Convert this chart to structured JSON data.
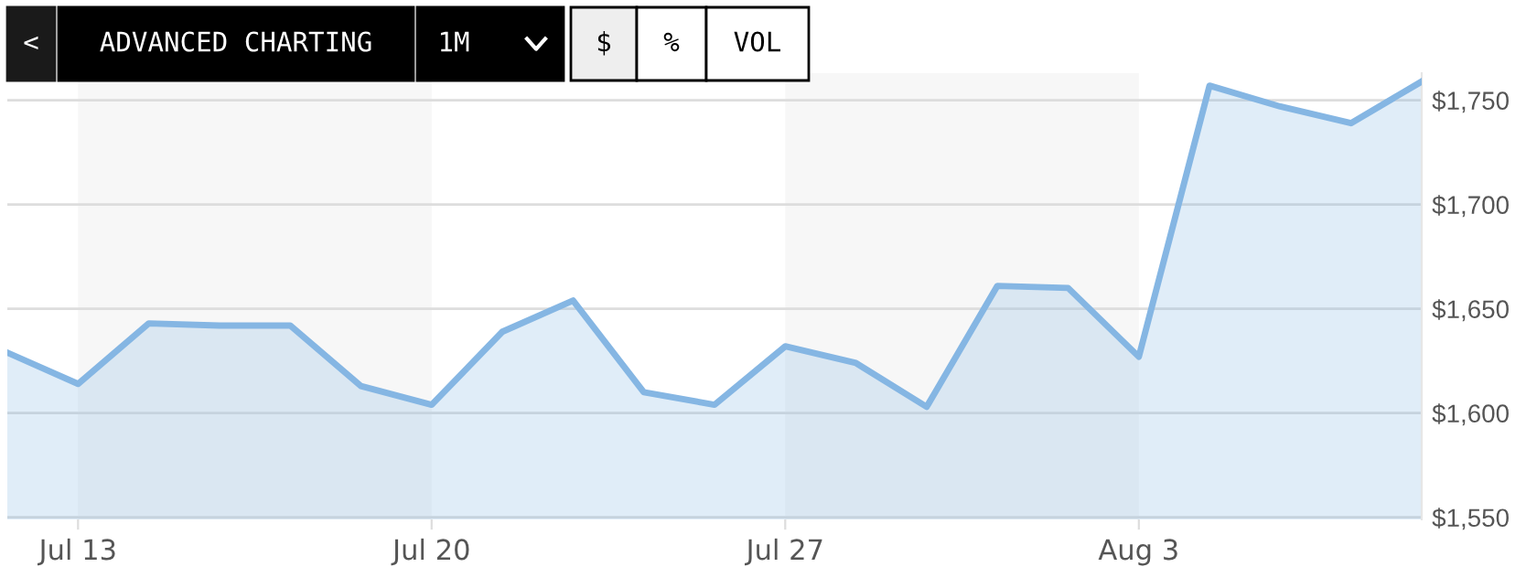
{
  "chart_data": {
    "type": "area",
    "categories": [
      null,
      "Jul 13",
      null,
      null,
      null,
      null,
      "Jul 20",
      null,
      null,
      null,
      null,
      "Jul 27",
      null,
      null,
      null,
      null,
      "Aug 3",
      null,
      null,
      null,
      null
    ],
    "series": [
      {
        "color": "#85b6e3",
        "values": [
          1629,
          1614,
          1643,
          1642,
          1642,
          1613,
          1604,
          1639,
          1654,
          1610,
          1604,
          1632,
          1624,
          1603,
          1661,
          1660,
          1627,
          1757,
          1747,
          1739,
          1759
        ]
      }
    ],
    "ylim": [
      1549,
      1763
    ],
    "yticks": [
      {
        "value": 1550,
        "label": "$1,550"
      },
      {
        "value": 1600,
        "label": "$1,600"
      },
      {
        "value": 1650,
        "label": "$1,650"
      },
      {
        "value": 1700,
        "label": "$1,700"
      },
      {
        "value": 1750,
        "label": "$1,750"
      }
    ],
    "grid": "y",
    "bands": [
      {
        "axis": "x",
        "from": "Jul 13",
        "to": "Jul 20",
        "color": "#f7f7f7"
      },
      {
        "axis": "x",
        "from": "Jul 27",
        "to": "Aug 3",
        "color": "#f7f7f7"
      }
    ],
    "annotations": [
      "<",
      "ADVANCED CHARTING",
      "1M",
      "$",
      "%",
      "VOL"
    ]
  }
}
